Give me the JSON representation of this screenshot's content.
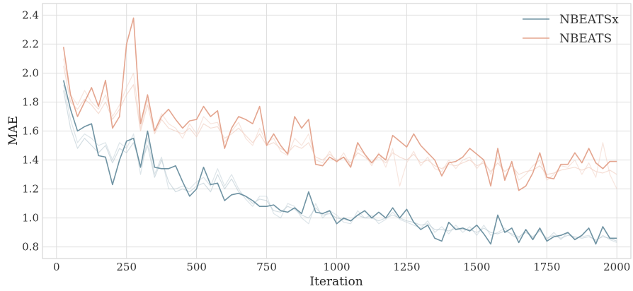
{
  "chart_data": {
    "type": "line",
    "xlabel": "Iteration",
    "ylabel": "MAE",
    "xlim": [
      -50,
      2050
    ],
    "ylim": [
      0.72,
      2.48
    ],
    "xticks": [
      0,
      250,
      500,
      750,
      1000,
      1250,
      1500,
      1750,
      2000
    ],
    "yticks": [
      0.8,
      1.0,
      1.2,
      1.4,
      1.6,
      1.8,
      2.0,
      2.2,
      2.4
    ],
    "grid": true,
    "legend_position": "top-right",
    "x": [
      25,
      50,
      75,
      100,
      125,
      150,
      175,
      200,
      225,
      250,
      275,
      300,
      325,
      350,
      375,
      400,
      425,
      450,
      475,
      500,
      525,
      550,
      575,
      600,
      625,
      650,
      675,
      700,
      725,
      750,
      775,
      800,
      825,
      850,
      875,
      900,
      925,
      950,
      975,
      1000,
      1025,
      1050,
      1075,
      1100,
      1125,
      1150,
      1175,
      1200,
      1225,
      1250,
      1275,
      1300,
      1325,
      1350,
      1375,
      1400,
      1425,
      1450,
      1475,
      1500,
      1525,
      1550,
      1575,
      1600,
      1625,
      1650,
      1675,
      1700,
      1725,
      1750,
      1775,
      1800,
      1825,
      1850,
      1875,
      1900,
      1925,
      1950,
      1975,
      2000
    ],
    "series": [
      {
        "name": "NBEATSx",
        "color": "#5f8799",
        "opacity": 0.9,
        "values": [
          1.95,
          1.75,
          1.6,
          1.63,
          1.65,
          1.43,
          1.42,
          1.23,
          1.4,
          1.53,
          1.55,
          1.35,
          1.6,
          1.35,
          1.34,
          1.34,
          1.36,
          1.25,
          1.15,
          1.2,
          1.35,
          1.23,
          1.24,
          1.12,
          1.16,
          1.17,
          1.15,
          1.12,
          1.08,
          1.08,
          1.09,
          1.05,
          1.04,
          1.07,
          1.03,
          1.18,
          1.04,
          1.03,
          1.05,
          0.96,
          1.0,
          0.98,
          1.02,
          1.05,
          1.0,
          1.04,
          1.0,
          1.07,
          1.0,
          1.06,
          0.97,
          0.92,
          0.95,
          0.86,
          0.84,
          0.97,
          0.92,
          0.93,
          0.91,
          0.95,
          0.89,
          0.82,
          1.02,
          0.9,
          0.93,
          0.83,
          0.92,
          0.85,
          0.93,
          0.84,
          0.87,
          0.88,
          0.9,
          0.85,
          0.88,
          0.93,
          0.82,
          0.94,
          0.86,
          0.86
        ]
      },
      {
        "name": "NBEATS",
        "color": "#e3a089",
        "opacity": 0.95,
        "values": [
          2.18,
          1.85,
          1.7,
          1.8,
          1.9,
          1.77,
          1.95,
          1.62,
          1.7,
          2.2,
          2.38,
          1.65,
          1.85,
          1.6,
          1.7,
          1.75,
          1.68,
          1.62,
          1.67,
          1.68,
          1.77,
          1.7,
          1.74,
          1.48,
          1.62,
          1.7,
          1.68,
          1.65,
          1.77,
          1.5,
          1.58,
          1.5,
          1.44,
          1.7,
          1.62,
          1.68,
          1.37,
          1.36,
          1.42,
          1.39,
          1.42,
          1.35,
          1.52,
          1.44,
          1.38,
          1.44,
          1.4,
          1.57,
          1.53,
          1.49,
          1.58,
          1.5,
          1.45,
          1.4,
          1.29,
          1.38,
          1.39,
          1.42,
          1.48,
          1.44,
          1.4,
          1.22,
          1.48,
          1.26,
          1.39,
          1.19,
          1.22,
          1.31,
          1.45,
          1.28,
          1.27,
          1.37,
          1.37,
          1.45,
          1.38,
          1.48,
          1.38,
          1.34,
          1.39,
          1.39
        ]
      },
      {
        "color": "#9fb6c2",
        "opacity": 0.45,
        "values": [
          1.88,
          1.62,
          1.48,
          1.55,
          1.5,
          1.45,
          1.5,
          1.38,
          1.48,
          1.45,
          1.52,
          1.36,
          1.5,
          1.28,
          1.4,
          1.25,
          1.18,
          1.2,
          1.18,
          1.22,
          1.24,
          1.18,
          1.3,
          1.2,
          1.27,
          1.18,
          1.15,
          1.1,
          1.13,
          1.12,
          1.05,
          1.04,
          1.08,
          1.06,
          1.02,
          1.0,
          1.07,
          1.02,
          1.03,
          1.0,
          0.99,
          0.98,
          1.02,
          1.0,
          1.0,
          0.98,
          1.0,
          1.02,
          1.0,
          0.98,
          0.97,
          0.95,
          0.96,
          0.92,
          0.92,
          0.91,
          0.93,
          0.92,
          0.92,
          0.9,
          0.93,
          0.9,
          0.89,
          0.91,
          0.89,
          0.87,
          0.9,
          0.87,
          0.91,
          0.86,
          0.88,
          0.86,
          0.88,
          0.87,
          0.86,
          0.87,
          0.85,
          0.87,
          0.86,
          0.84
        ]
      },
      {
        "color": "#b3c5cf",
        "opacity": 0.45,
        "values": [
          1.92,
          1.68,
          1.52,
          1.58,
          1.55,
          1.5,
          1.52,
          1.4,
          1.52,
          1.48,
          1.58,
          1.3,
          1.55,
          1.3,
          1.42,
          1.2,
          1.2,
          1.22,
          1.2,
          1.25,
          1.28,
          1.22,
          1.34,
          1.22,
          1.3,
          1.2,
          1.13,
          1.08,
          1.15,
          1.15,
          1.03,
          1.0,
          1.1,
          1.08,
          1.0,
          0.96,
          1.1,
          1.0,
          1.05,
          1.02,
          0.97,
          0.96,
          1.05,
          1.0,
          1.02,
          0.96,
          0.99,
          1.04,
          0.99,
          0.97,
          0.95,
          0.93,
          0.98,
          0.9,
          0.94,
          0.89,
          0.95,
          0.9,
          0.94,
          0.88,
          0.95,
          0.88,
          0.9,
          0.93,
          0.88,
          0.86,
          0.92,
          0.86,
          0.92,
          0.85,
          0.9,
          0.85,
          0.9,
          0.86,
          0.87,
          0.88,
          0.84,
          0.88,
          0.85,
          0.83
        ]
      },
      {
        "color": "#ecc2b3",
        "opacity": 0.55,
        "values": [
          2.05,
          1.8,
          1.75,
          1.82,
          1.78,
          1.72,
          1.8,
          1.68,
          1.75,
          1.85,
          1.92,
          1.6,
          1.78,
          1.58,
          1.68,
          1.62,
          1.6,
          1.58,
          1.62,
          1.56,
          1.65,
          1.62,
          1.63,
          1.55,
          1.58,
          1.62,
          1.57,
          1.52,
          1.58,
          1.5,
          1.52,
          1.48,
          1.45,
          1.5,
          1.48,
          1.52,
          1.42,
          1.4,
          1.44,
          1.4,
          1.42,
          1.38,
          1.45,
          1.42,
          1.38,
          1.42,
          1.38,
          1.45,
          1.42,
          1.4,
          1.44,
          1.38,
          1.4,
          1.36,
          1.34,
          1.37,
          1.36,
          1.38,
          1.4,
          1.36,
          1.38,
          1.32,
          1.38,
          1.32,
          1.36,
          1.3,
          1.32,
          1.33,
          1.36,
          1.3,
          1.31,
          1.33,
          1.34,
          1.35,
          1.33,
          1.35,
          1.32,
          1.31,
          1.33,
          1.3
        ]
      },
      {
        "color": "#f0cfc2",
        "opacity": 0.55,
        "values": [
          2.1,
          1.85,
          1.78,
          1.88,
          1.8,
          1.75,
          1.85,
          1.7,
          1.78,
          1.9,
          2.0,
          1.62,
          1.82,
          1.6,
          1.72,
          1.65,
          1.62,
          1.55,
          1.65,
          1.58,
          1.7,
          1.65,
          1.66,
          1.52,
          1.6,
          1.66,
          1.55,
          1.5,
          1.62,
          1.52,
          1.55,
          1.46,
          1.43,
          1.55,
          1.5,
          1.58,
          1.4,
          1.38,
          1.46,
          1.38,
          1.45,
          1.36,
          1.48,
          1.44,
          1.36,
          1.45,
          1.35,
          1.48,
          1.22,
          1.38,
          1.46,
          1.36,
          1.42,
          1.34,
          1.32,
          1.4,
          1.34,
          1.4,
          1.42,
          1.34,
          1.4,
          1.3,
          1.42,
          1.28,
          1.38,
          1.26,
          1.3,
          1.36,
          1.4,
          1.26,
          1.3,
          1.36,
          1.35,
          1.4,
          1.3,
          1.38,
          1.28,
          1.52,
          1.3,
          1.2
        ]
      }
    ]
  }
}
